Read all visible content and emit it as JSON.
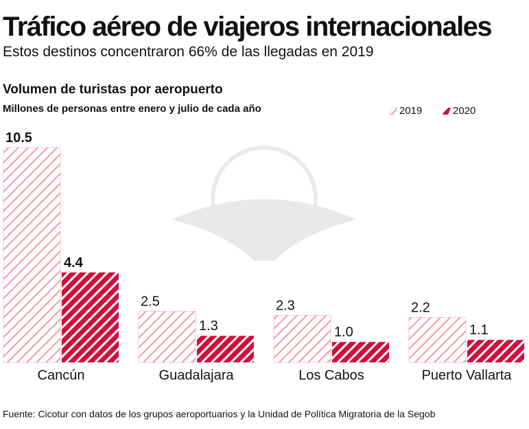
{
  "chart_data": {
    "type": "bar",
    "title": "Tráfico aéreo de viajeros internacionales",
    "subtitle": "Estos destinos concentraron 66% de las llegadas en 2019",
    "chart_title": "Volumen de turistas por aeropuerto",
    "chart_subtitle": "Millones de personas entre enero y julio de cada año",
    "categories": [
      "Cancún",
      "Guadalajara",
      "Los Cabos",
      "Puerto Vallarta"
    ],
    "series": [
      {
        "name": "2019",
        "color": "#f29aaa",
        "values": [
          10.5,
          2.5,
          2.3,
          2.2
        ],
        "value_labels": [
          "10.5",
          "2.5",
          "2.3",
          "2.2"
        ]
      },
      {
        "name": "2020",
        "color": "#d0103a",
        "values": [
          4.4,
          1.3,
          1.0,
          1.1
        ],
        "value_labels": [
          "4.4",
          "1.3",
          "1.0",
          "1.1"
        ]
      }
    ],
    "source": "Fuente: Cicotur con datos de los grupos aeroportuarios y la Unidad de Política Migratoria de la Segob"
  }
}
